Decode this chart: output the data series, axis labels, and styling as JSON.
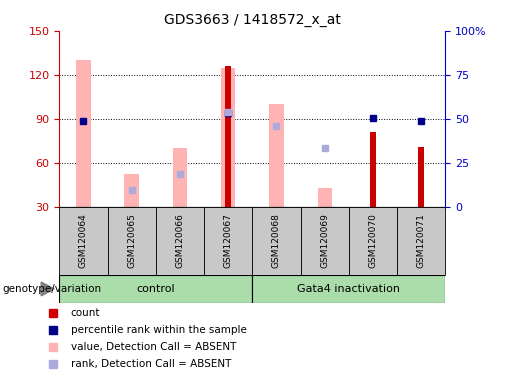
{
  "title": "GDS3663 / 1418572_x_at",
  "samples": [
    "GSM120064",
    "GSM120065",
    "GSM120066",
    "GSM120067",
    "GSM120068",
    "GSM120069",
    "GSM120070",
    "GSM120071"
  ],
  "ylim_left": [
    30,
    150
  ],
  "ylim_right": [
    0,
    100
  ],
  "yticks_left": [
    30,
    60,
    90,
    120,
    150
  ],
  "ytick_labels_right": [
    "0",
    "25",
    "50",
    "75",
    "100%"
  ],
  "pink_bars": [
    130,
    53,
    70,
    125,
    100,
    43,
    null,
    null
  ],
  "light_blue_squares": [
    null,
    42,
    53,
    95,
    85,
    70,
    null,
    null
  ],
  "red_bars": [
    null,
    null,
    null,
    126,
    null,
    null,
    81,
    71
  ],
  "blue_squares": [
    89,
    null,
    null,
    94,
    null,
    null,
    91,
    89
  ],
  "colors": {
    "red": "#CC0000",
    "pink": "#FFB3B3",
    "dark_blue": "#00008B",
    "light_blue": "#AAAADD",
    "axis_left_color": "#CC0000",
    "axis_right_color": "#0000CC",
    "background_xticklabels": "#C8C8C8",
    "group_green_light": "#AADDAA",
    "group_green_dark": "#55CC55"
  },
  "group_divider": 3.5,
  "control_label": "control",
  "gata4_label": "Gata4 inactivation",
  "legend_items": [
    {
      "color": "#CC0000",
      "label": "count"
    },
    {
      "color": "#00008B",
      "label": "percentile rank within the sample"
    },
    {
      "color": "#FFB3B3",
      "label": "value, Detection Call = ABSENT"
    },
    {
      "color": "#AAAADD",
      "label": "rank, Detection Call = ABSENT"
    }
  ]
}
